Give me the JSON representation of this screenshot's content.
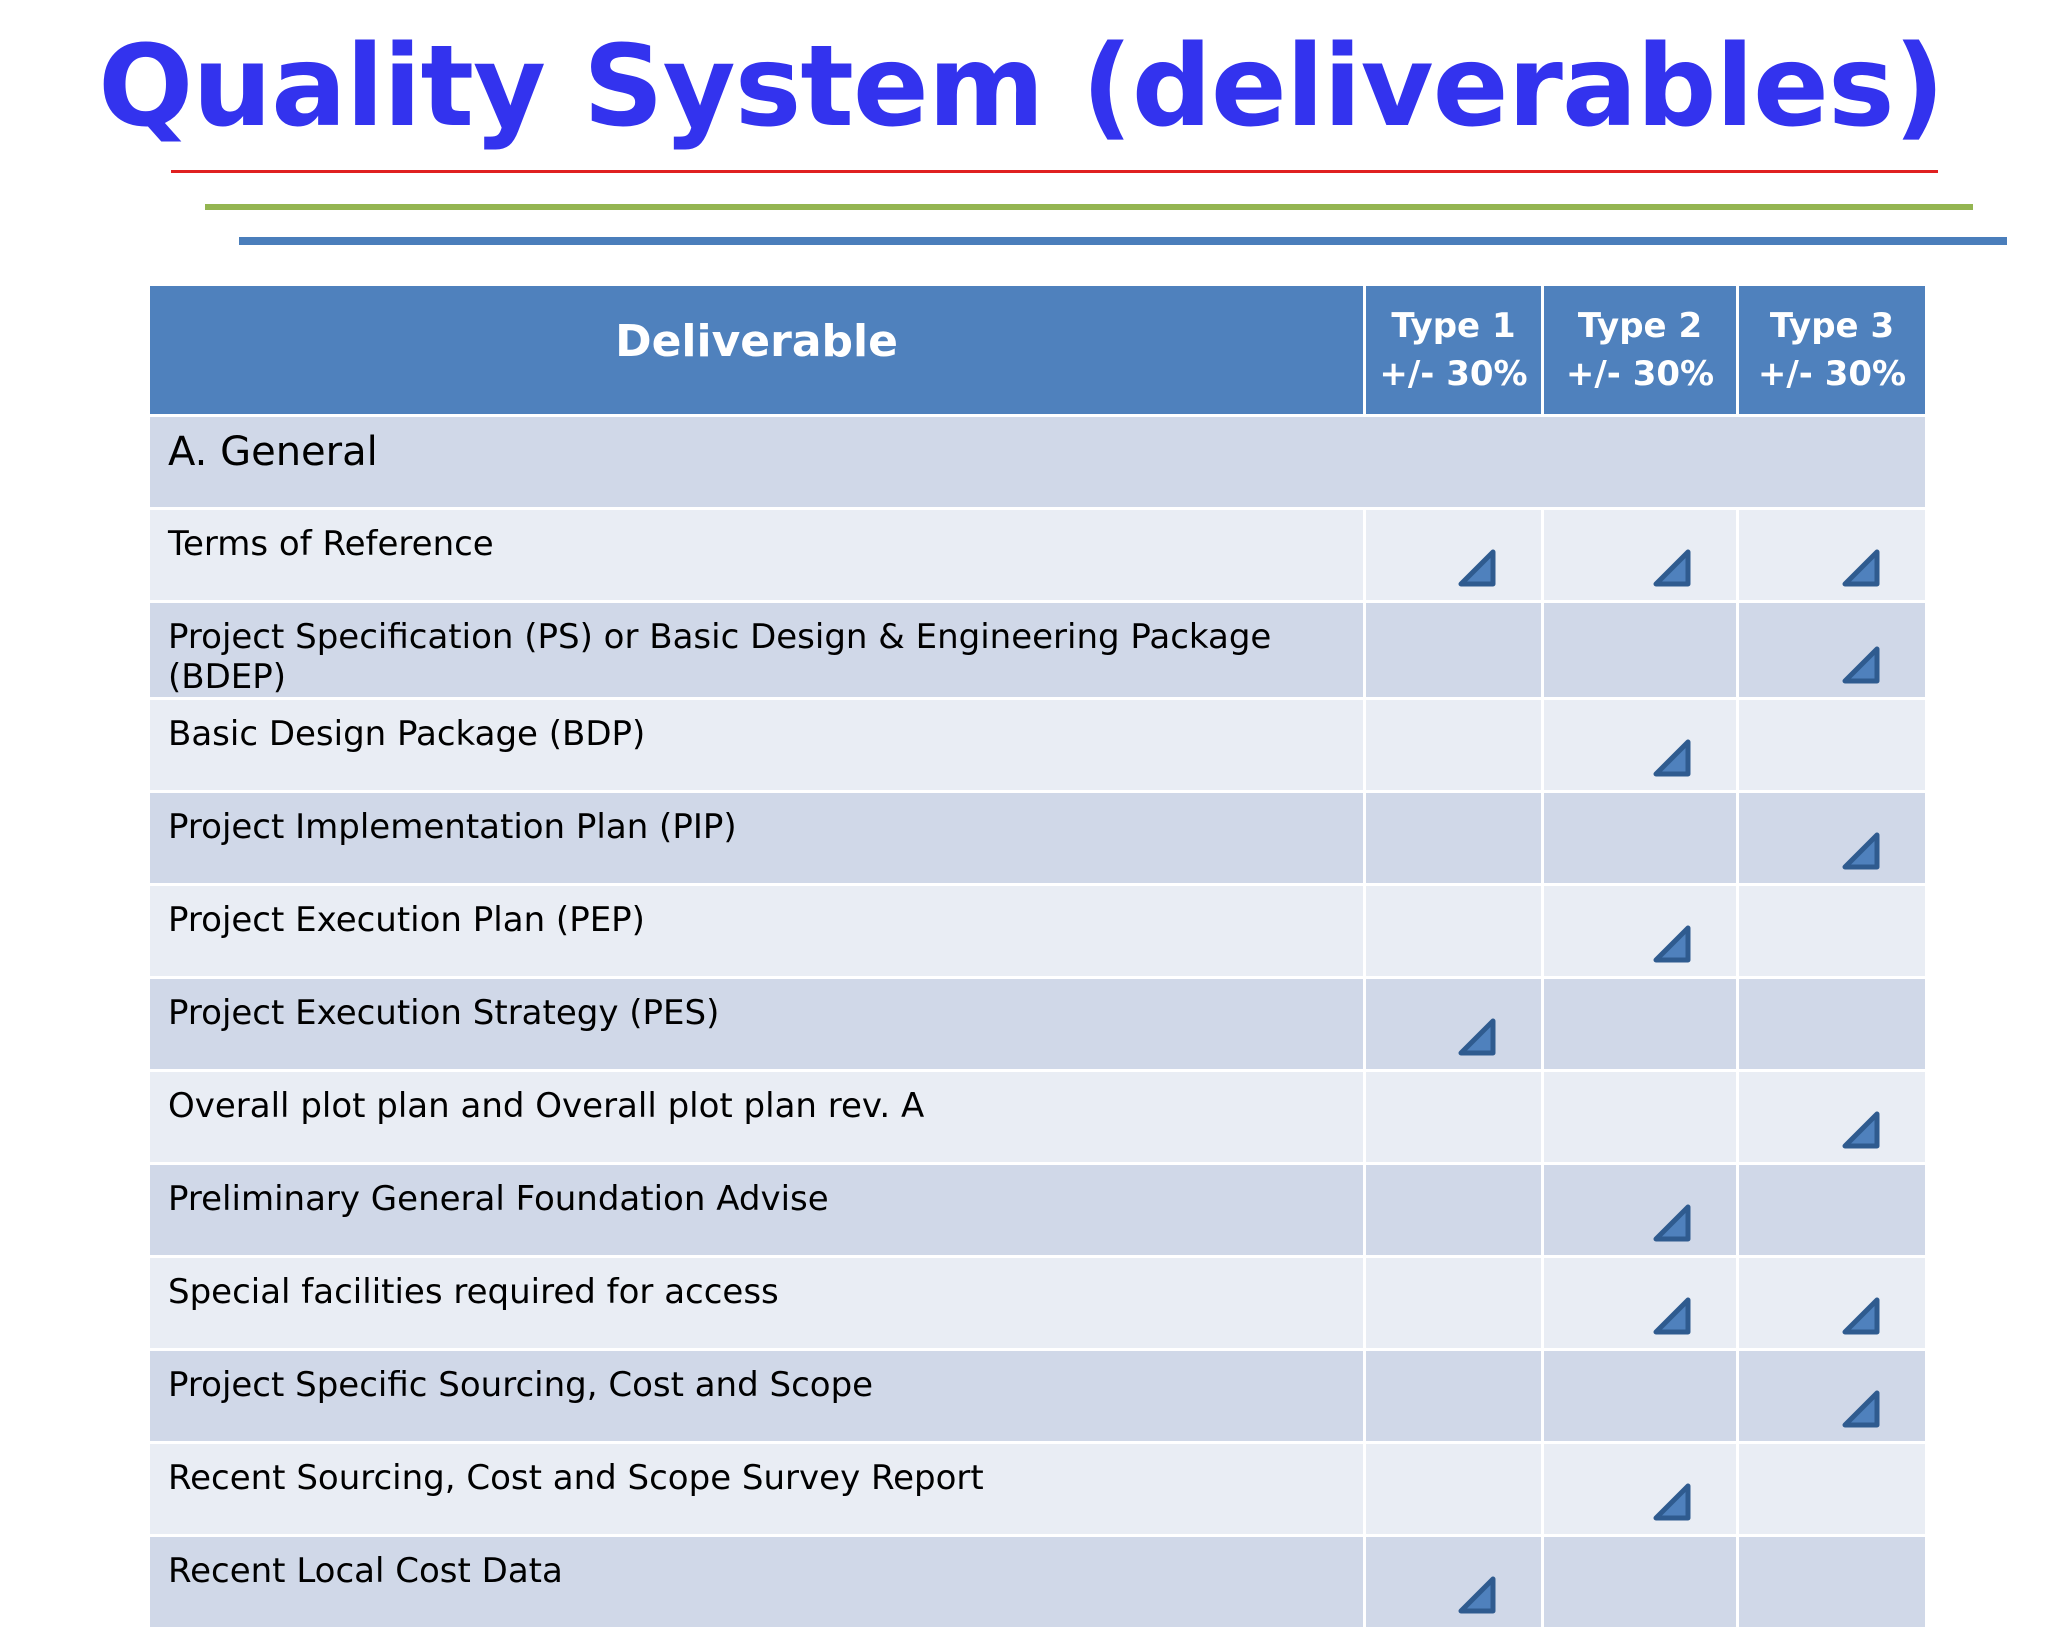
{
  "title": "Quality System (deliverables)",
  "colors": {
    "title": "#3333ee",
    "header": "#4f81bd",
    "row_dark": "#d0d8e8",
    "row_light": "#e9edf4",
    "check": "#4a7ebb",
    "line_red": "#e02020",
    "line_green": "#94b551",
    "line_blue": "#4a7ebb"
  },
  "table": {
    "headers": {
      "deliverable": "Deliverable",
      "type1": [
        "Type 1",
        "+/- 30%"
      ],
      "type2": [
        "Type 2",
        "+/- 30%"
      ],
      "type3": [
        "Type 3",
        "+/- 30%"
      ]
    },
    "section": "A. General",
    "check_icon": "triangle-check-icon",
    "rows": [
      {
        "label": "Terms of Reference",
        "checks": [
          true,
          true,
          true
        ]
      },
      {
        "label": "Project Specification (PS) or Basic Design & Engineering Package (BDEP)",
        "checks": [
          false,
          false,
          true
        ]
      },
      {
        "label": "Basic Design Package (BDP)",
        "checks": [
          false,
          true,
          false
        ]
      },
      {
        "label": "Project Implementation Plan (PIP)",
        "checks": [
          false,
          false,
          true
        ]
      },
      {
        "label": "Project Execution Plan (PEP)",
        "checks": [
          false,
          true,
          false
        ]
      },
      {
        "label": "Project Execution Strategy (PES)",
        "checks": [
          true,
          false,
          false
        ]
      },
      {
        "label": "Overall plot plan and Overall plot plan rev. A",
        "checks": [
          false,
          false,
          true
        ]
      },
      {
        "label": "Preliminary General Foundation Advise",
        "checks": [
          false,
          true,
          false
        ]
      },
      {
        "label": "Special facilities required for access",
        "checks": [
          false,
          true,
          true
        ]
      },
      {
        "label": "Project Specific Sourcing, Cost and Scope",
        "checks": [
          false,
          false,
          true
        ]
      },
      {
        "label": "Recent Sourcing, Cost and Scope Survey Report",
        "checks": [
          false,
          true,
          false
        ]
      },
      {
        "label": "Recent Local Cost Data",
        "checks": [
          true,
          false,
          false
        ]
      }
    ]
  }
}
